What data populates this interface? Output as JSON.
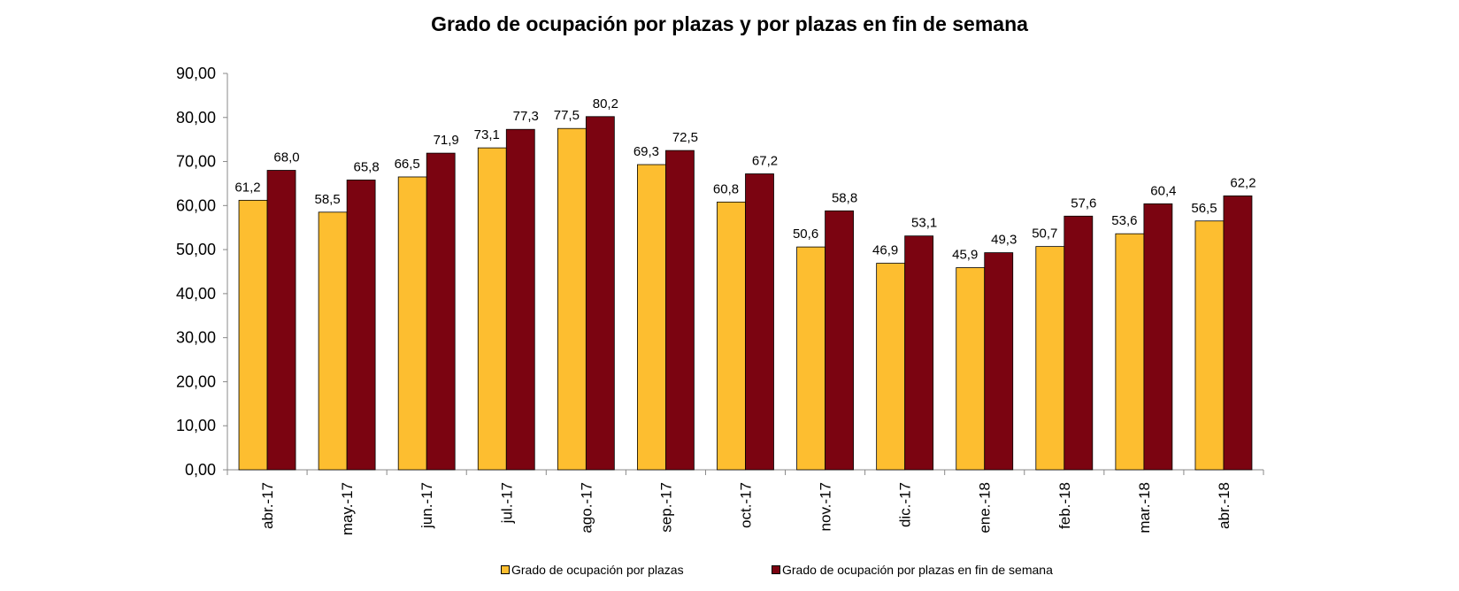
{
  "chart_data": {
    "type": "bar",
    "title": "Grado de ocupación por plazas y por plazas en fin de semana",
    "categories": [
      "abr.-17",
      "may.-17",
      "jun.-17",
      "jul.-17",
      "ago.-17",
      "sep.-17",
      "oct.-17",
      "nov.-17",
      "dic.-17",
      "ene.-18",
      "feb.-18",
      "mar.-18",
      "abr.-18"
    ],
    "series": [
      {
        "name": "Grado de ocupación por plazas",
        "color": "#FDBE30",
        "values": [
          61.2,
          58.5,
          66.5,
          73.1,
          77.5,
          69.3,
          60.8,
          50.6,
          46.9,
          45.9,
          50.7,
          53.6,
          56.5
        ],
        "labels": [
          "61,2",
          "58,5",
          "66,5",
          "73,1",
          "77,5",
          "69,3",
          "60,8",
          "50,6",
          "46,9",
          "45,9",
          "50,7",
          "53,6",
          "56,5"
        ]
      },
      {
        "name": "Grado de ocupación por plazas en fin de semana",
        "color": "#7B0411",
        "values": [
          68.0,
          65.8,
          71.9,
          77.3,
          80.2,
          72.5,
          67.2,
          58.8,
          53.1,
          49.3,
          57.6,
          60.4,
          62.2
        ],
        "labels": [
          "68,0",
          "65,8",
          "71,9",
          "77,3",
          "80,2",
          "72,5",
          "67,2",
          "58,8",
          "53,1",
          "49,3",
          "57,6",
          "60,4",
          "62,2"
        ]
      }
    ],
    "ylim": [
      0,
      90
    ],
    "yticks": [
      "0,00",
      "10,00",
      "20,00",
      "30,00",
      "40,00",
      "50,00",
      "60,00",
      "70,00",
      "80,00",
      "90,00"
    ],
    "grid": false,
    "legend_position": "bottom"
  }
}
